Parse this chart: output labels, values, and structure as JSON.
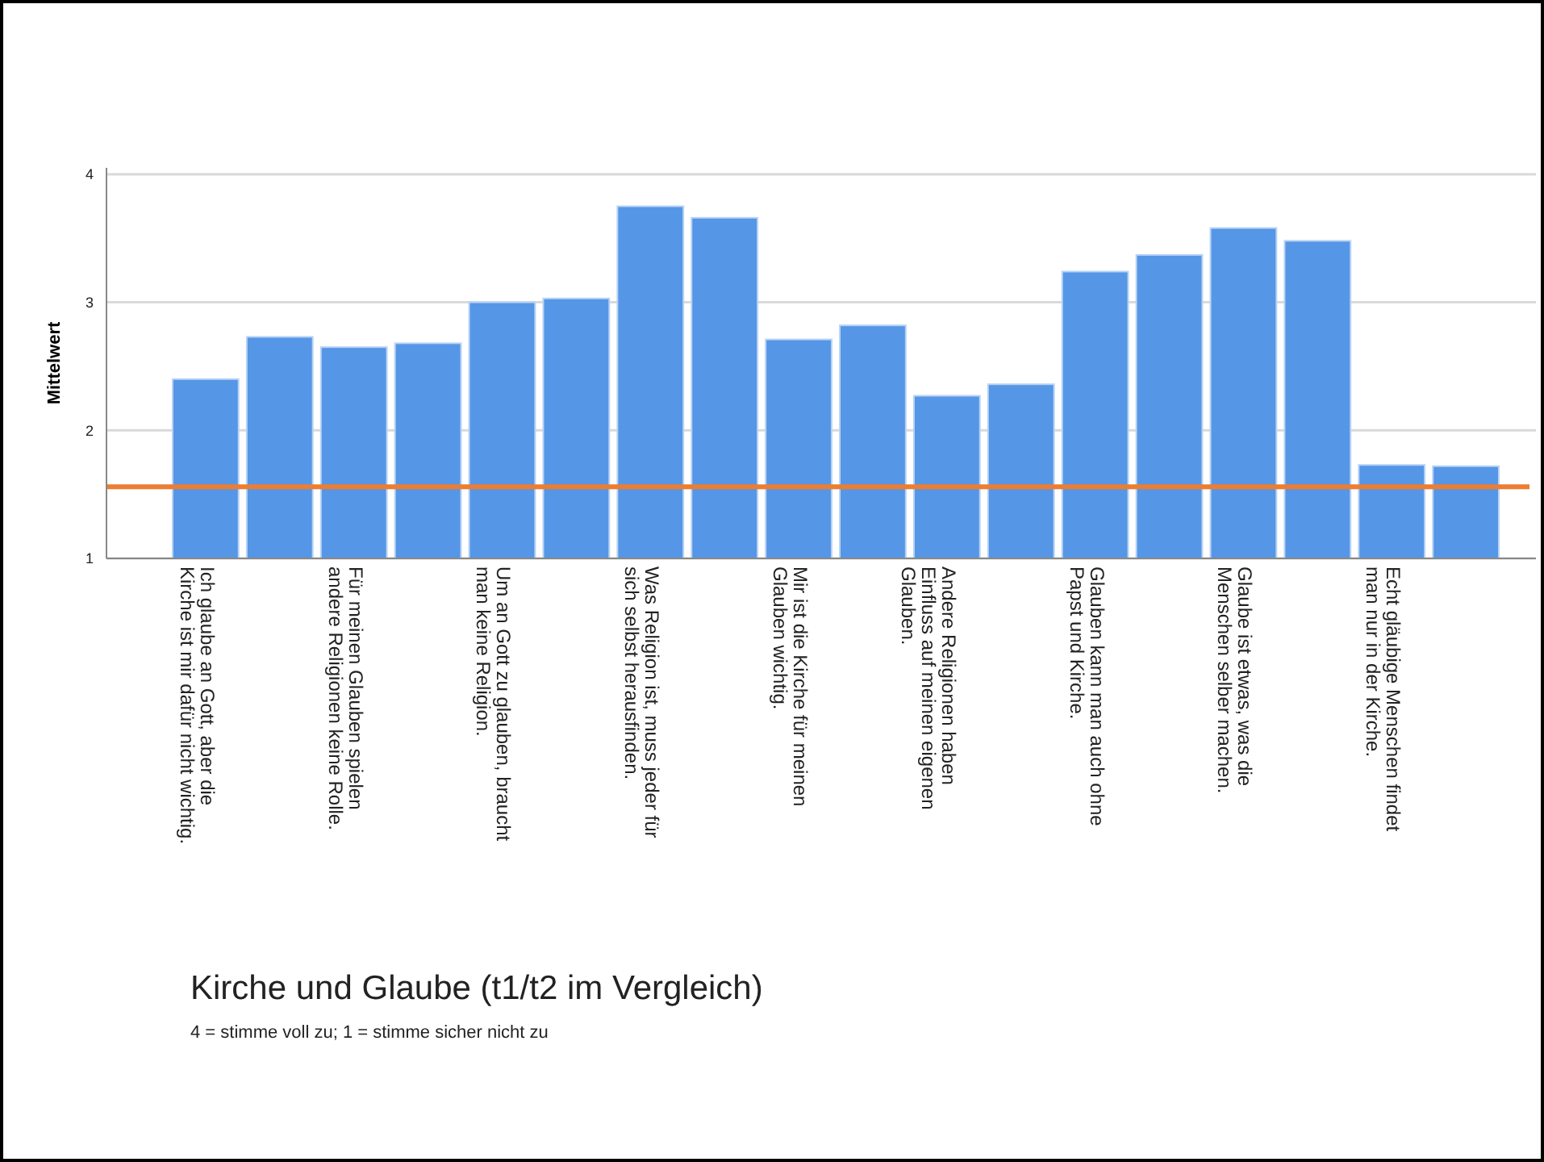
{
  "chart_data": {
    "type": "bar",
    "title": "Kirche und Glaube (t1/t2 im Vergleich)",
    "subtitle": "4 = stimme voll zu; 1 = stimme sicher nicht zu",
    "ylabel": "Mittelwert",
    "categories": [
      "Ich glaube an Gott, aber die\nKirche ist mir dafür nicht wichtig.",
      null,
      "Für meinen Glauben spielen\nandere Religionen keine Rolle.",
      null,
      "Um an Gott zu glauben, braucht\nman keine Religion.",
      null,
      "Was Religion ist, muss jeder für\nsich selbst herausfinden.",
      null,
      "Mir ist die Kirche für meinen\nGlauben wichtig.",
      null,
      "Andere Religionen haben\nEinfluss auf meinen eigenen\nGlauben.",
      null,
      "Glauben kann man auch ohne\nPapst und Kirche.",
      null,
      "Glaube ist etwas, was die\nMenschen selber machen.",
      null,
      "Echt gläubige Menschen findet\nman nur in der Kirche.",
      null
    ],
    "values": [
      2.4,
      2.73,
      2.65,
      2.68,
      3.0,
      3.03,
      3.75,
      3.66,
      2.71,
      2.82,
      2.27,
      2.36,
      3.24,
      3.37,
      3.58,
      3.48,
      1.73,
      1.72
    ],
    "color": "#5596e6",
    "ylim": [
      1,
      4.05
    ],
    "yticks": [
      1,
      2,
      3,
      4
    ],
    "grid": "y",
    "ref_lines": [
      {
        "axis": "y",
        "value": 1.56,
        "color": "#ed7d31"
      }
    ]
  }
}
